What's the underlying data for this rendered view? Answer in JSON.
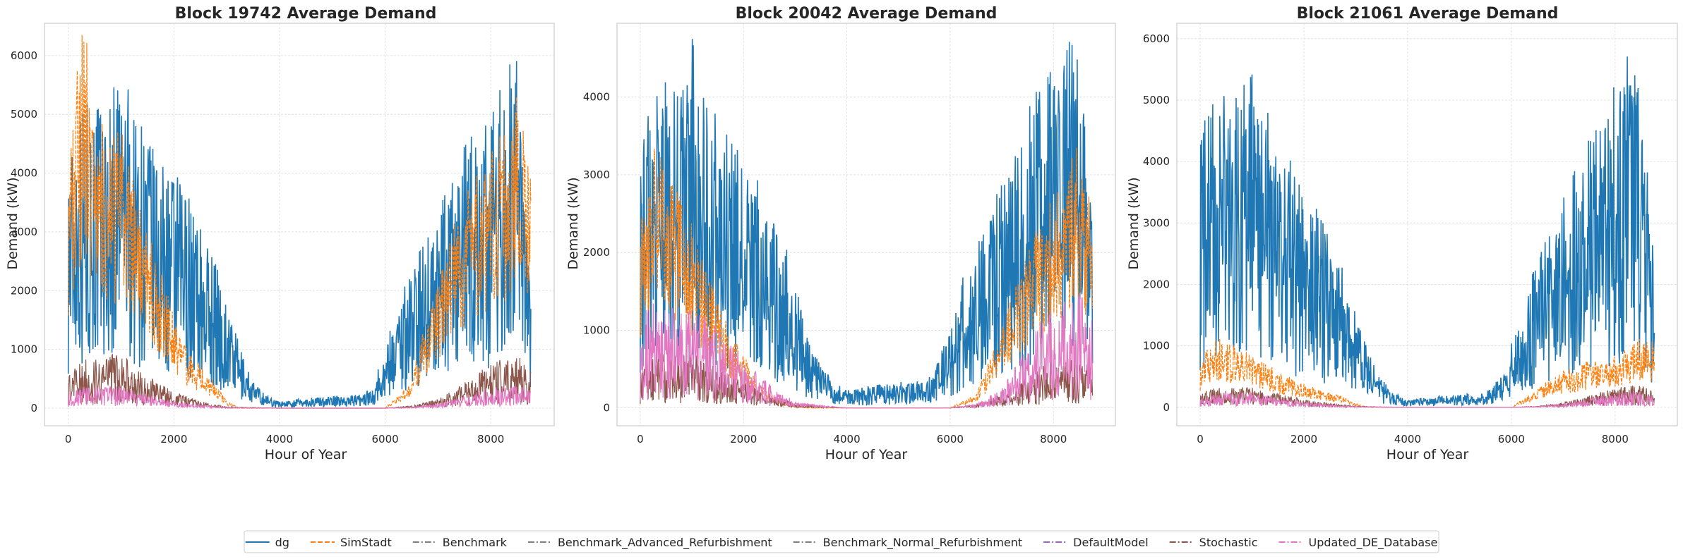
{
  "colors": {
    "dg": "#1f77b4",
    "SimStadt": "#ff7f0e",
    "Benchmark": "#7f7f7f",
    "Benchmark_Advanced_Refurbishment": "#7f7f7f",
    "Benchmark_Normal_Refurbishment": "#7f7f7f",
    "DefaultModel": "#9467bd",
    "Stochastic": "#8c564b",
    "Updated_DE_Database": "#e377c2"
  },
  "legend": {
    "placement": "bottom-center",
    "entries": [
      {
        "name": "dg",
        "color": "#1f77b4",
        "dash": "solid"
      },
      {
        "name": "SimStadt",
        "color": "#ff7f0e",
        "dash": "dashed"
      },
      {
        "name": "Benchmark",
        "color": "#7f7f7f",
        "dash": "dashdot"
      },
      {
        "name": "Benchmark_Advanced_Refurbishment",
        "color": "#7f7f7f",
        "dash": "dashdot"
      },
      {
        "name": "Benchmark_Normal_Refurbishment",
        "color": "#7f7f7f",
        "dash": "dashdot"
      },
      {
        "name": "DefaultModel",
        "color": "#9467bd",
        "dash": "dashdot"
      },
      {
        "name": "Stochastic",
        "color": "#8c564b",
        "dash": "dashdot"
      },
      {
        "name": "Updated_DE_Database",
        "color": "#e377c2",
        "dash": "dashdot"
      }
    ]
  },
  "chart_data": [
    {
      "type": "line",
      "title": "Block 19742 Average Demand",
      "xlabel": "Hour of Year",
      "ylabel": "Demand (kW)",
      "xlim": [
        -450,
        9200
      ],
      "ylim": [
        -300,
        6550
      ],
      "xticks": [
        0,
        2000,
        4000,
        6000,
        8000
      ],
      "yticks": [
        0,
        1000,
        2000,
        3000,
        4000,
        5000,
        6000
      ],
      "grid": true,
      "series": [
        {
          "name": "dg",
          "x": [
            0,
            250,
            500,
            750,
            1000,
            1250,
            1500,
            1750,
            2000,
            2250,
            2500,
            2750,
            3000,
            3250,
            3500,
            3750,
            4000,
            4500,
            5000,
            5500,
            5750,
            6000,
            6250,
            6500,
            6750,
            7000,
            7250,
            7500,
            7750,
            8000,
            8250,
            8500,
            8760
          ],
          "y": [
            3900,
            4600,
            4700,
            4500,
            5300,
            4400,
            4200,
            3600,
            3500,
            3300,
            2700,
            2300,
            1600,
            900,
            400,
            200,
            100,
            150,
            180,
            200,
            300,
            900,
            1700,
            2100,
            2600,
            3000,
            3300,
            4000,
            4100,
            4300,
            5000,
            5200,
            1700
          ]
        },
        {
          "name": "SimStadt",
          "x": [
            0,
            250,
            500,
            750,
            1000,
            1250,
            1500,
            1750,
            2000,
            2250,
            2500,
            2750,
            3000,
            3250,
            4000,
            5000,
            6000,
            6500,
            6750,
            7000,
            7250,
            7500,
            7750,
            8000,
            8250,
            8500,
            8760
          ],
          "y": [
            3500,
            5600,
            4600,
            3800,
            4000,
            3200,
            2500,
            2000,
            1300,
            800,
            600,
            400,
            100,
            0,
            0,
            0,
            0,
            400,
            1200,
            1800,
            2700,
            3000,
            3400,
            3600,
            4000,
            4600,
            3200
          ]
        },
        {
          "name": "Stochastic",
          "x": [
            0,
            250,
            500,
            750,
            1000,
            1250,
            1500,
            1750,
            2000,
            2500,
            3000,
            4000,
            5000,
            6000,
            6500,
            7000,
            7500,
            7750,
            8000,
            8250,
            8500,
            8760
          ],
          "y": [
            450,
            650,
            680,
            700,
            750,
            520,
            420,
            330,
            220,
            90,
            20,
            0,
            0,
            0,
            30,
            120,
            330,
            470,
            580,
            650,
            720,
            500
          ]
        },
        {
          "name": "Updated_DE_Database",
          "x": [
            0,
            250,
            500,
            750,
            1000,
            1250,
            1500,
            1750,
            2000,
            2500,
            3000,
            4000,
            5000,
            6000,
            6500,
            7000,
            7500,
            7750,
            8000,
            8250,
            8500,
            8760
          ],
          "y": [
            220,
            280,
            290,
            300,
            320,
            230,
            180,
            140,
            100,
            40,
            10,
            0,
            0,
            0,
            15,
            60,
            160,
            220,
            270,
            300,
            320,
            230
          ]
        }
      ]
    },
    {
      "type": "line",
      "title": "Block 20042 Average Demand",
      "xlabel": "Hour of Year",
      "ylabel": "Demand (kW)",
      "xlim": [
        -450,
        9200
      ],
      "ylim": [
        -230,
        4950
      ],
      "xticks": [
        0,
        2000,
        4000,
        6000,
        8000
      ],
      "yticks": [
        0,
        1000,
        2000,
        3000,
        4000
      ],
      "grid": true,
      "series": [
        {
          "name": "dg",
          "x": [
            0,
            250,
            500,
            750,
            1000,
            1250,
            1500,
            1750,
            2000,
            2250,
            2500,
            2750,
            3000,
            3250,
            3500,
            3750,
            4000,
            4500,
            5000,
            5500,
            5750,
            6000,
            6250,
            6500,
            6750,
            7000,
            7250,
            7500,
            7750,
            8000,
            8250,
            8500,
            8760
          ],
          "y": [
            3000,
            3500,
            3700,
            3600,
            4200,
            3500,
            3300,
            3000,
            2800,
            2600,
            2200,
            2000,
            1400,
            800,
            500,
            300,
            200,
            250,
            300,
            300,
            500,
            900,
            1500,
            1900,
            2200,
            2600,
            3000,
            3400,
            3700,
            3900,
            4300,
            4200,
            2000
          ]
        },
        {
          "name": "SimStadt",
          "x": [
            0,
            250,
            500,
            750,
            1000,
            1250,
            1500,
            1750,
            2000,
            2250,
            2500,
            2750,
            3000,
            3250,
            4000,
            5000,
            6000,
            6500,
            6750,
            7000,
            7250,
            7500,
            7750,
            8000,
            8250,
            8500,
            8760
          ],
          "y": [
            2000,
            3000,
            2600,
            2300,
            2000,
            1500,
            1200,
            800,
            600,
            300,
            150,
            60,
            20,
            0,
            0,
            0,
            0,
            150,
            500,
            900,
            1300,
            1700,
            2000,
            2300,
            2600,
            2900,
            2200
          ]
        },
        {
          "name": "Stochastic",
          "x": [
            0,
            250,
            500,
            750,
            1000,
            1250,
            1500,
            1750,
            2000,
            2500,
            3000,
            4000,
            5000,
            6000,
            6500,
            7000,
            7500,
            7750,
            8000,
            8250,
            8500,
            8760
          ],
          "y": [
            500,
            560,
            540,
            540,
            560,
            450,
            400,
            350,
            280,
            150,
            40,
            0,
            0,
            0,
            30,
            130,
            330,
            420,
            480,
            520,
            560,
            450
          ]
        },
        {
          "name": "Updated_DE_Database",
          "x": [
            0,
            250,
            500,
            750,
            1000,
            1250,
            1500,
            1750,
            2000,
            2500,
            3000,
            4000,
            5000,
            6000,
            6500,
            7000,
            7500,
            7750,
            8000,
            8250,
            8500,
            8760
          ],
          "y": [
            950,
            1050,
            1000,
            1000,
            1050,
            900,
            800,
            700,
            500,
            250,
            60,
            0,
            0,
            0,
            40,
            200,
            600,
            850,
            1000,
            1100,
            1150,
            900
          ]
        }
      ]
    },
    {
      "type": "line",
      "title": "Block 21061 Average Demand",
      "xlabel": "Hour of Year",
      "ylabel": "Demand (kW)",
      "xlim": [
        -450,
        9200
      ],
      "ylim": [
        -300,
        6250
      ],
      "xticks": [
        0,
        2000,
        4000,
        6000,
        8000
      ],
      "yticks": [
        0,
        1000,
        2000,
        3000,
        4000,
        5000,
        6000
      ],
      "grid": true,
      "series": [
        {
          "name": "dg",
          "x": [
            0,
            250,
            500,
            750,
            1000,
            1250,
            1500,
            1750,
            2000,
            2250,
            2500,
            2750,
            3000,
            3250,
            3500,
            3750,
            4000,
            4500,
            5000,
            5500,
            5750,
            6000,
            6250,
            6500,
            6750,
            7000,
            7250,
            7500,
            7750,
            8000,
            8250,
            8500,
            8760
          ],
          "y": [
            4000,
            4400,
            4600,
            4500,
            4800,
            4300,
            3800,
            3500,
            3100,
            2800,
            2400,
            2000,
            1500,
            800,
            400,
            200,
            100,
            150,
            200,
            200,
            400,
            900,
            1600,
            2100,
            2500,
            3000,
            3400,
            3800,
            4200,
            4600,
            5000,
            4600,
            2000
          ]
        },
        {
          "name": "SimStadt",
          "x": [
            0,
            250,
            500,
            750,
            1000,
            1250,
            1500,
            1750,
            2000,
            2250,
            2500,
            2750,
            3000,
            3250,
            4000,
            5000,
            6000,
            6500,
            6750,
            7000,
            7250,
            7500,
            7750,
            8000,
            8250,
            8500,
            8760
          ],
          "y": [
            600,
            1000,
            900,
            800,
            750,
            600,
            500,
            400,
            330,
            250,
            200,
            150,
            50,
            0,
            0,
            0,
            0,
            250,
            400,
            500,
            550,
            650,
            600,
            700,
            800,
            950,
            900
          ]
        },
        {
          "name": "Stochastic",
          "x": [
            0,
            250,
            500,
            750,
            1000,
            1250,
            1500,
            1750,
            2000,
            2500,
            3000,
            4000,
            5000,
            6000,
            6500,
            7000,
            7500,
            7750,
            8000,
            8250,
            8500,
            8760
          ],
          "y": [
            180,
            240,
            250,
            250,
            260,
            200,
            170,
            140,
            100,
            50,
            15,
            0,
            0,
            0,
            15,
            60,
            150,
            200,
            240,
            270,
            280,
            200
          ]
        },
        {
          "name": "Updated_DE_Database",
          "x": [
            0,
            250,
            500,
            750,
            1000,
            1250,
            1500,
            1750,
            2000,
            2500,
            3000,
            4000,
            5000,
            6000,
            6500,
            7000,
            7500,
            7750,
            8000,
            8250,
            8500,
            8760
          ],
          "y": [
            130,
            170,
            180,
            180,
            190,
            150,
            120,
            100,
            70,
            35,
            10,
            0,
            0,
            0,
            10,
            45,
            110,
            150,
            180,
            200,
            210,
            150
          ]
        }
      ]
    }
  ]
}
